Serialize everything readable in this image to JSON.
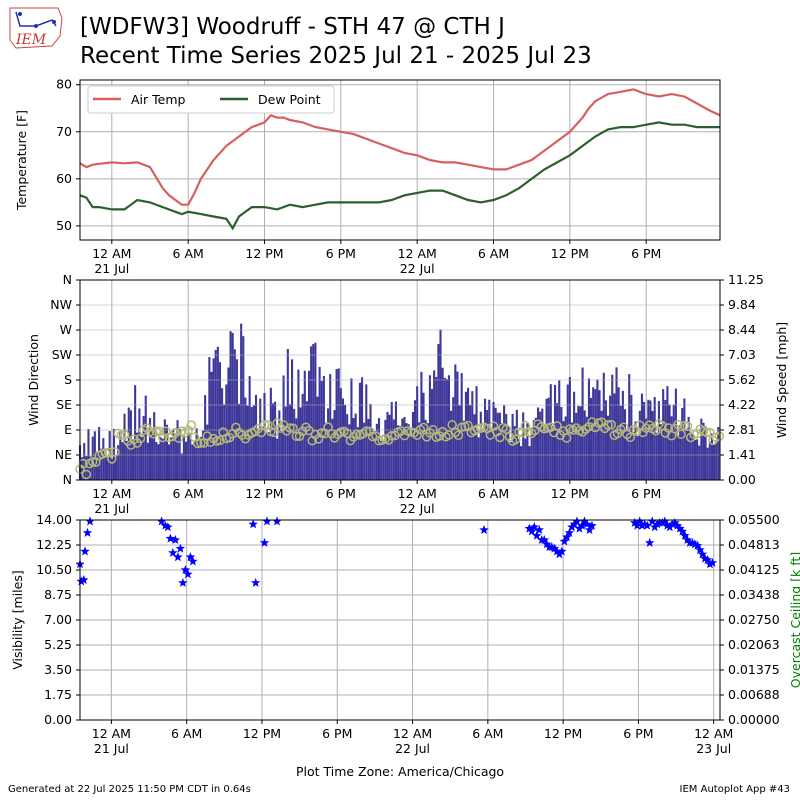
{
  "header": {
    "title_line1": "[WDFW3] Woodruff - STH 47 @ CTH J",
    "title_line2": "Recent Time Series 2025 Jul 21 - 2025 Jul 23",
    "logo_text": "IEM"
  },
  "footer": {
    "generated": "Generated at 22 Jul 2025 11:50 PM CDT in 0.64s",
    "app": "IEM Autoplot App #43",
    "xlabel": "Plot Time Zone: America/Chicago"
  },
  "colors": {
    "air_temp": "#d6605f",
    "dew_point": "#2c5f2d",
    "wind_speed": "#3c3799",
    "wind_dir": "#b5b876",
    "visibility": "#0000ff",
    "ceiling_label": "#008000",
    "grid": "#b0b0b0"
  },
  "chart_data": [
    {
      "type": "line",
      "ylabel": "Temperature [F]",
      "ylim": [
        47,
        81
      ],
      "xlim_hours": [
        -2.5,
        47.8
      ],
      "yticks": [
        50,
        60,
        70,
        80
      ],
      "xticks": [
        {
          "h": 0,
          "l1": "12 AM",
          "l2": "21 Jul"
        },
        {
          "h": 6,
          "l1": "6 AM",
          "l2": ""
        },
        {
          "h": 12,
          "l1": "12 PM",
          "l2": ""
        },
        {
          "h": 18,
          "l1": "6 PM",
          "l2": ""
        },
        {
          "h": 24,
          "l1": "12 AM",
          "l2": "22 Jul"
        },
        {
          "h": 30,
          "l1": "6 AM",
          "l2": ""
        },
        {
          "h": 36,
          "l1": "12 PM",
          "l2": ""
        },
        {
          "h": 42,
          "l1": "6 PM",
          "l2": ""
        }
      ],
      "legend": {
        "placement": "upper-left"
      },
      "series": [
        {
          "name": "Air Temp",
          "x": [
            -2.5,
            -2,
            -1.5,
            -1,
            0,
            1,
            2,
            2.5,
            3,
            4,
            4.5,
            5,
            5.5,
            6,
            6.5,
            7,
            8,
            9,
            10,
            11,
            12,
            12.5,
            13,
            13.5,
            14,
            15,
            16,
            17,
            18,
            19,
            20,
            21,
            22,
            23,
            24,
            25,
            26,
            27,
            28,
            29,
            30,
            31,
            32,
            33,
            34,
            35,
            36,
            37,
            37.5,
            38,
            39,
            40,
            41,
            41.5,
            42,
            43,
            44,
            45,
            46,
            47,
            47.8
          ],
          "y": [
            63.3,
            62.5,
            63,
            63.2,
            63.5,
            63.3,
            63.5,
            63,
            62.5,
            58,
            56.5,
            55.5,
            54.5,
            54.5,
            57,
            60,
            64,
            67,
            69,
            71,
            72,
            73.5,
            73,
            73,
            72.5,
            72,
            71,
            70.5,
            70,
            69.5,
            68.5,
            67.5,
            66.5,
            65.5,
            65,
            64,
            63.5,
            63.5,
            63,
            62.5,
            62,
            62,
            63,
            64,
            66,
            68,
            70,
            73,
            75,
            76.5,
            78,
            78.5,
            79,
            78.5,
            78,
            77.5,
            78,
            77.5,
            76,
            74.5,
            73.5
          ]
        },
        {
          "name": "Dew Point",
          "x": [
            -2.5,
            -2,
            -1.5,
            -1,
            0,
            1,
            2,
            3,
            4,
            5,
            5.5,
            6,
            7,
            8,
            9,
            9.5,
            10,
            11,
            12,
            13,
            14,
            15,
            16,
            17,
            18,
            19,
            20,
            21,
            22,
            23,
            24,
            25,
            26,
            27,
            28,
            29,
            30,
            31,
            32,
            33,
            34,
            35,
            36,
            37,
            38,
            39,
            40,
            41,
            42,
            43,
            44,
            45,
            46,
            47,
            47.8
          ],
          "y": [
            56.5,
            56,
            54,
            54,
            53.5,
            53.5,
            55.5,
            55,
            54,
            53,
            52.5,
            53,
            52.5,
            52,
            51.5,
            49.5,
            52,
            54,
            54,
            53.5,
            54.5,
            54,
            54.5,
            55,
            55,
            55,
            55,
            55,
            55.5,
            56.5,
            57,
            57.5,
            57.5,
            56.5,
            55.5,
            55,
            55.5,
            56.5,
            58,
            60,
            62,
            63.5,
            65,
            67,
            69,
            70.5,
            71,
            71,
            71.5,
            72,
            71.5,
            71.5,
            71,
            71,
            71
          ]
        }
      ]
    },
    {
      "type": "bar",
      "ylabel": "Wind Direction",
      "ylabel_right": "Wind Speed [mph]",
      "dir_ticks": [
        "N",
        "NE",
        "E",
        "SE",
        "S",
        "SW",
        "W",
        "NW",
        "N"
      ],
      "speed_ticks": [
        "0.00",
        "1.41",
        "2.81",
        "4.22",
        "5.62",
        "7.03",
        "8.44",
        "9.84",
        "11.25"
      ],
      "speed_ylim": [
        0,
        11.25
      ],
      "dir_ylim": [
        0,
        360
      ],
      "series": [
        {
          "name": "Wind Speed",
          "x": [
            -2.5,
            -1,
            0,
            1,
            2,
            3,
            4,
            5,
            6,
            7,
            8,
            9,
            10,
            11,
            12,
            13,
            14,
            15,
            16,
            17,
            18,
            19,
            20,
            21,
            22,
            23,
            24,
            25,
            26,
            27,
            28,
            29,
            30,
            31,
            32,
            33,
            34,
            35,
            36,
            37,
            38,
            39,
            40,
            41,
            42,
            43,
            44,
            45,
            46,
            47
          ],
          "y": [
            2.2,
            2.4,
            2.2,
            3.0,
            4.5,
            3.6,
            2.8,
            2.6,
            2.6,
            3.6,
            6.5,
            6.0,
            7.5,
            6.0,
            4.2,
            4.2,
            6.2,
            5.5,
            6.2,
            4.6,
            5.0,
            4.4,
            4.8,
            3.6,
            4.2,
            3.6,
            4.4,
            5.6,
            6.8,
            5.0,
            4.4,
            3.9,
            3.4,
            3.4,
            3.0,
            3.4,
            4.0,
            4.4,
            4.5,
            5.1,
            5.4,
            5.0,
            4.9,
            4.5,
            3.6,
            3.9,
            4.6,
            4.0,
            3.0,
            2.3
          ]
        },
        {
          "name": "Wind Direction",
          "x": [
            -2.5,
            -1.5,
            -0.5,
            0.5,
            1.5,
            2.5,
            3.5,
            4.5,
            5.5,
            6.5,
            7.5,
            8.5,
            9.5,
            10.5,
            11.5,
            12.5,
            13.5,
            14.5,
            15.5,
            16.5,
            17.5,
            18.5,
            19.5,
            20.5,
            21.5,
            22.5,
            23.5,
            24.5,
            25.5,
            26.5,
            27.5,
            28.5,
            29.5,
            30.5,
            31.5,
            32.5,
            33.5,
            34.5,
            35.5,
            36.5,
            37.5,
            38.5,
            39.5,
            40.5,
            41.5,
            42.5,
            43.5,
            44.5,
            45.5,
            46.5,
            47.5
          ],
          "y": [
            20,
            40,
            45,
            80,
            70,
            90,
            85,
            85,
            90,
            75,
            70,
            80,
            85,
            80,
            90,
            95,
            90,
            85,
            80,
            90,
            85,
            80,
            85,
            80,
            75,
            85,
            90,
            85,
            80,
            90,
            95,
            85,
            90,
            85,
            80,
            90,
            95,
            90,
            85,
            90,
            100,
            95,
            90,
            85,
            90,
            95,
            85,
            90,
            85,
            80,
            75
          ]
        }
      ]
    },
    {
      "type": "scatter",
      "ylabel": "Visibility [miles]",
      "ylabel_right": "Overcast Ceiling [k ft]",
      "ylim": [
        0,
        14
      ],
      "right_ticks": [
        "0.00000",
        "0.00688",
        "0.01375",
        "0.02063",
        "0.02750",
        "0.03438",
        "0.04125",
        "0.04813",
        "0.05500"
      ],
      "yticks": [
        "0.00",
        "1.75",
        "3.50",
        "5.25",
        "7.00",
        "8.75",
        "10.50",
        "12.25",
        "14.00"
      ],
      "xlim_hours": [
        -2.5,
        48.5
      ],
      "xticks": [
        {
          "h": 0,
          "l1": "12 AM",
          "l2": "21 Jul"
        },
        {
          "h": 6,
          "l1": "6 AM",
          "l2": ""
        },
        {
          "h": 12,
          "l1": "12 PM",
          "l2": ""
        },
        {
          "h": 18,
          "l1": "6 PM",
          "l2": ""
        },
        {
          "h": 24,
          "l1": "12 AM",
          "l2": "22 Jul"
        },
        {
          "h": 30,
          "l1": "6 AM",
          "l2": ""
        },
        {
          "h": 36,
          "l1": "12 PM",
          "l2": ""
        },
        {
          "h": 42,
          "l1": "6 PM",
          "l2": ""
        },
        {
          "h": 48,
          "l1": "12 AM",
          "l2": "23 Jul"
        }
      ],
      "series": [
        {
          "name": "Visibility",
          "x": [
            -2.5,
            -2.4,
            -2.2,
            -2.1,
            -1.9,
            -1.7,
            4.0,
            4.3,
            4.5,
            4.7,
            4.9,
            5.1,
            5.3,
            5.5,
            5.7,
            5.9,
            6.1,
            6.3,
            6.5,
            11.3,
            11.5,
            12.2,
            12.4,
            13.2,
            29.7,
            33.3,
            33.5,
            33.7,
            33.9,
            34.1,
            34.3,
            34.5,
            34.7,
            34.9,
            35.1,
            35.3,
            35.5,
            35.7,
            35.9,
            36.1,
            36.3,
            36.5,
            36.7,
            36.9,
            37.1,
            37.3,
            37.5,
            37.7,
            37.9,
            38.1,
            38.3,
            41.7,
            41.9,
            42.1,
            42.3,
            42.5,
            42.7,
            42.9,
            43.1,
            43.3,
            43.5,
            43.7,
            43.9,
            44.1,
            44.3,
            44.5,
            44.7,
            44.9,
            45.1,
            45.3,
            45.5,
            45.7,
            45.9,
            46.1,
            46.3,
            46.5,
            46.7,
            46.9,
            47.1,
            47.3,
            47.5,
            47.7,
            47.9
          ],
          "y": [
            10.9,
            9.7,
            9.8,
            11.8,
            13.1,
            13.9,
            13.9,
            13.6,
            13.5,
            12.7,
            11.7,
            12.6,
            11.4,
            12.0,
            9.6,
            10.5,
            10.2,
            11.4,
            11.1,
            13.7,
            9.6,
            12.4,
            13.9,
            13.9,
            13.3,
            13.4,
            13.2,
            13.5,
            12.9,
            13.3,
            12.6,
            12.6,
            12.3,
            12.1,
            12.1,
            12.0,
            11.8,
            11.6,
            11.8,
            12.5,
            12.8,
            13.1,
            13.5,
            13.7,
            13.9,
            13.4,
            13.6,
            13.9,
            13.7,
            13.3,
            13.6,
            13.8,
            13.6,
            13.9,
            13.6,
            13.7,
            13.6,
            12.4,
            13.9,
            13.5,
            13.7,
            13.8,
            13.8,
            13.9,
            13.6,
            13.5,
            13.7,
            13.8,
            13.6,
            13.4,
            13.2,
            12.9,
            12.6,
            12.4,
            12.4,
            12.3,
            12.2,
            11.9,
            11.6,
            11.3,
            11.2,
            10.9,
            11.0
          ]
        }
      ]
    }
  ]
}
